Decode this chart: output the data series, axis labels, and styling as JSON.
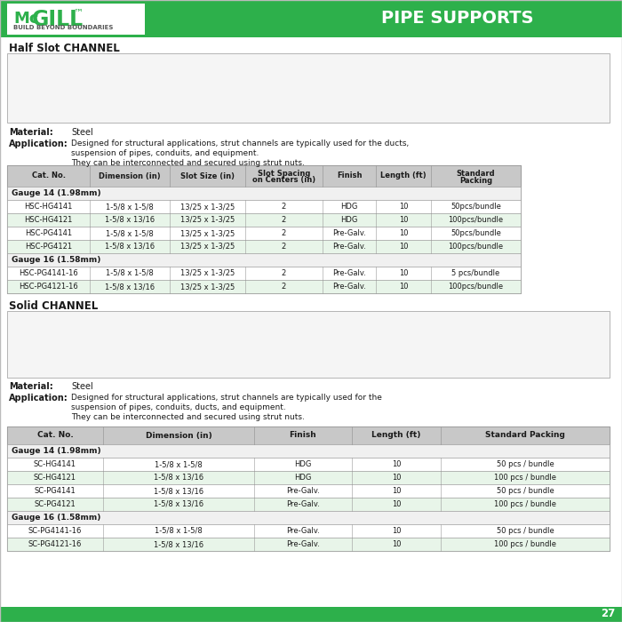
{
  "page_bg": "#ffffff",
  "green_color": "#2db04b",
  "table_header_bg": "#c8c8c8",
  "table_row_alt": "#e8f5e9",
  "table_row_white": "#ffffff",
  "gauge_row_bg": "#f0f0f0",
  "border_color": "#999999",
  "text_dark": "#1a1a1a",
  "page_number": "27",
  "title_pipe_supports": "PIPE SUPPORTS",
  "section1_title": "Half Slot CHANNEL",
  "section2_title": "Solid CHANNEL",
  "material_label": "Material:",
  "material_value": "Steel",
  "application_label": "Application:",
  "hsc_app_line1": "Designed for structural applications, strut channels are typically used for the ducts,",
  "hsc_app_line2": "suspension of pipes, conduits, and equipment.",
  "hsc_app_line3": "They can be interconnected and secured using strut nuts.",
  "sc_app_line1": "Designed for structural applications, strut channels are typically used for the",
  "sc_app_line2": "suspension of pipes, conduits, ducts, and equipment.",
  "sc_app_line3": "They can be interconnected and secured using strut nuts.",
  "hsc_headers": [
    "Cat. No.",
    "Dimension (in)",
    "Slot Size (in)",
    "Slot Spacing\non Centers (in)",
    "Finish",
    "Length (ft)",
    "Standard\nPacking"
  ],
  "hsc_col_widths": [
    93,
    90,
    85,
    87,
    60,
    62,
    101
  ],
  "hsc_gauge14_label": "Gauge 14 (1.98mm)",
  "hsc_rows_gauge14": [
    [
      "HSC-HG4141",
      "1-5/8 x 1-5/8",
      "13/25 x 1-3/25",
      "2",
      "HDG",
      "10",
      "50pcs/bundle"
    ],
    [
      "HSC-HG4121",
      "1-5/8 x 13/16",
      "13/25 x 1-3/25",
      "2",
      "HDG",
      "10",
      "100pcs/bundle"
    ],
    [
      "HSC-PG4141",
      "1-5/8 x 1-5/8",
      "13/25 x 1-3/25",
      "2",
      "Pre-Galv.",
      "10",
      "50pcs/bundle"
    ],
    [
      "HSC-PG4121",
      "1-5/8 x 13/16",
      "13/25 x 1-3/25",
      "2",
      "Pre-Galv.",
      "10",
      "100pcs/bundle"
    ]
  ],
  "hsc_gauge16_label": "Gauge 16 (1.58mm)",
  "hsc_rows_gauge16": [
    [
      "HSC-PG4141-16",
      "1-5/8 x 1-5/8",
      "13/25 x 1-3/25",
      "2",
      "Pre-Galv.",
      "10",
      "5 pcs/bundle"
    ],
    [
      "HSC-PG4121-16",
      "1-5/8 x 13/16",
      "13/25 x 1-3/25",
      "2",
      "Pre-Galv.",
      "10",
      "100pcs/bundle"
    ]
  ],
  "sc_headers": [
    "Cat. No.",
    "Dimension (in)",
    "Finish",
    "Length (ft)",
    "Standard Packing"
  ],
  "sc_col_widths": [
    108,
    170,
    110,
    100,
    190
  ],
  "sc_gauge14_label": "Gauge 14 (1.98mm)",
  "sc_rows_gauge14": [
    [
      "SC-HG4141",
      "1-5/8 x 1-5/8",
      "HDG",
      "10",
      "50 pcs / bundle"
    ],
    [
      "SC-HG4121",
      "1-5/8 x 13/16",
      "HDG",
      "10",
      "100 pcs / bundle"
    ],
    [
      "SC-PG4141",
      "1-5/8 x 13/16",
      "Pre-Galv.",
      "10",
      "50 pcs / bundle"
    ],
    [
      "SC-PG4121",
      "1-5/8 x 13/16",
      "Pre-Galv.",
      "10",
      "100 pcs / bundle"
    ]
  ],
  "sc_gauge16_label": "Gauge 16 (1.58mm)",
  "sc_rows_gauge16": [
    [
      "SC-PG4141-16",
      "1-5/8 x 1-5/8",
      "Pre-Galv.",
      "10",
      "50 pcs / bundle"
    ],
    [
      "SC-PG4121-16",
      "1-5/8 x 13/16",
      "Pre-Galv.",
      "10",
      "100 pcs / bundle"
    ]
  ]
}
